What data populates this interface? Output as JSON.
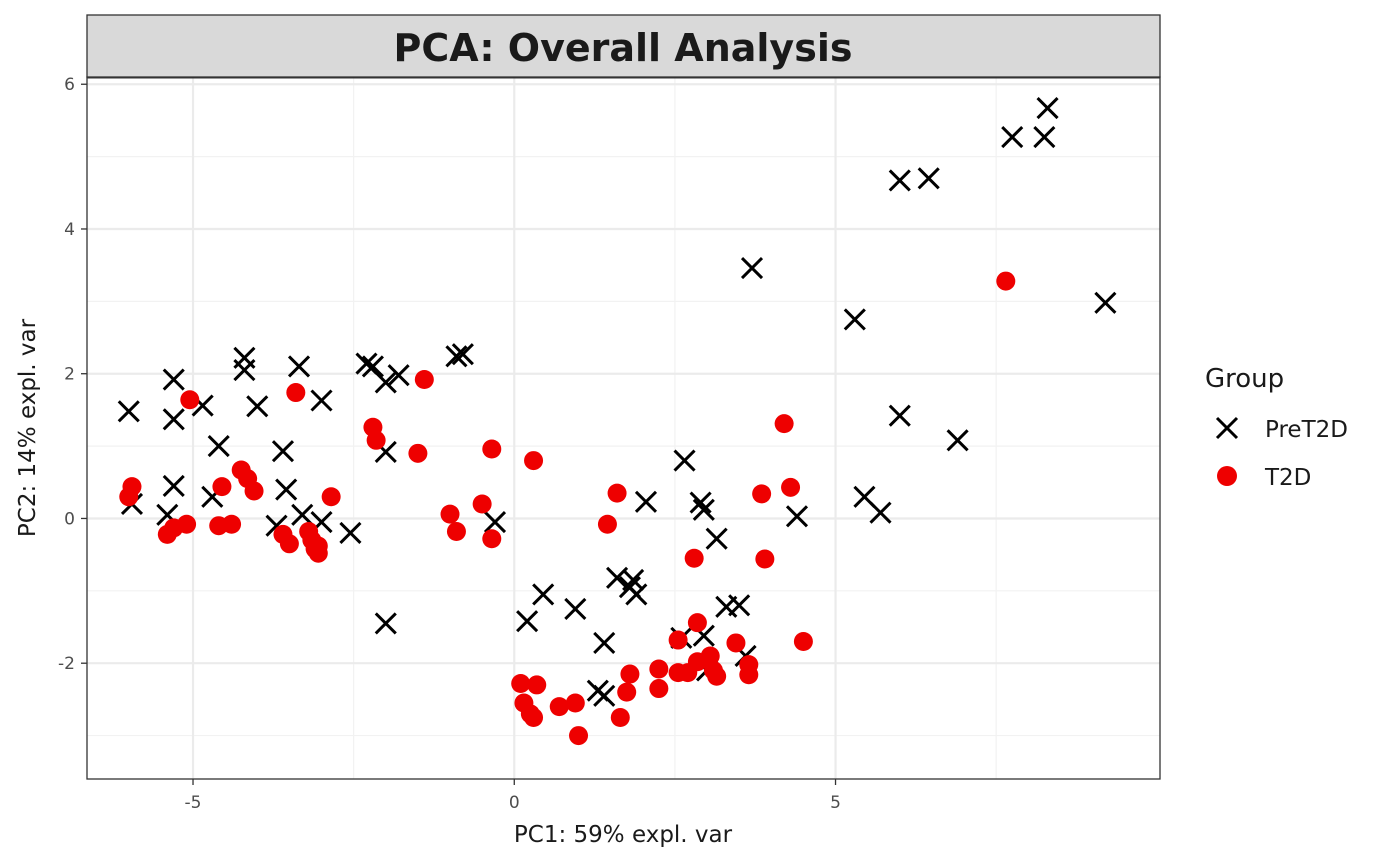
{
  "chart_data": {
    "type": "scatter",
    "title": "PCA: Overall Analysis",
    "xlabel": "PC1: 59% expl. var",
    "ylabel": "PC2: 14% expl. var",
    "xlim": [
      -6.65,
      10.05
    ],
    "ylim": [
      -3.6,
      6.1
    ],
    "x_ticks": [
      -5,
      0,
      5
    ],
    "y_ticks": [
      -2,
      0,
      2,
      4,
      6
    ],
    "x_minor_ticks": [
      -7.5,
      -2.5,
      2.5,
      7.5
    ],
    "y_minor_ticks": [
      -3,
      -1,
      1,
      3,
      5
    ],
    "grid": true,
    "legend_title": "Group",
    "legend_position": "right",
    "series": [
      {
        "name": "PreT2D",
        "marker": "x",
        "color": "#000000",
        "points": [
          [
            -6.0,
            1.48
          ],
          [
            -5.95,
            0.2
          ],
          [
            -5.3,
            1.92
          ],
          [
            -5.3,
            1.37
          ],
          [
            -5.3,
            0.45
          ],
          [
            -5.4,
            0.05
          ],
          [
            -4.85,
            1.56
          ],
          [
            -4.7,
            0.3
          ],
          [
            -4.6,
            1.0
          ],
          [
            -4.2,
            2.22
          ],
          [
            -4.2,
            2.05
          ],
          [
            -4.0,
            1.55
          ],
          [
            -3.6,
            0.93
          ],
          [
            -3.55,
            0.4
          ],
          [
            -3.7,
            -0.1
          ],
          [
            -3.35,
            2.1
          ],
          [
            -3.3,
            0.05
          ],
          [
            -3.0,
            1.63
          ],
          [
            -3.0,
            -0.05
          ],
          [
            -2.55,
            -0.2
          ],
          [
            -2.3,
            2.14
          ],
          [
            -2.2,
            2.1
          ],
          [
            -2.0,
            1.88
          ],
          [
            -1.8,
            1.98
          ],
          [
            -2.0,
            0.92
          ],
          [
            -2.0,
            -1.45
          ],
          [
            -0.9,
            2.24
          ],
          [
            -0.8,
            2.27
          ],
          [
            -0.3,
            -0.05
          ],
          [
            0.2,
            -1.42
          ],
          [
            0.45,
            -1.05
          ],
          [
            0.95,
            -1.25
          ],
          [
            1.4,
            -1.72
          ],
          [
            1.3,
            -2.38
          ],
          [
            1.4,
            -2.45
          ],
          [
            1.6,
            -0.82
          ],
          [
            1.8,
            -0.95
          ],
          [
            1.85,
            -0.85
          ],
          [
            1.9,
            -1.05
          ],
          [
            2.05,
            0.23
          ],
          [
            2.6,
            -1.65
          ],
          [
            2.65,
            0.8
          ],
          [
            2.9,
            0.22
          ],
          [
            2.95,
            0.12
          ],
          [
            3.15,
            -0.28
          ],
          [
            2.95,
            -1.62
          ],
          [
            3.0,
            -2.1
          ],
          [
            3.3,
            -1.22
          ],
          [
            3.5,
            -1.2
          ],
          [
            3.6,
            -1.9
          ],
          [
            3.7,
            3.46
          ],
          [
            4.4,
            0.03
          ],
          [
            5.3,
            2.75
          ],
          [
            5.45,
            0.3
          ],
          [
            5.7,
            0.08
          ],
          [
            6.0,
            1.42
          ],
          [
            6.0,
            4.67
          ],
          [
            6.45,
            4.7
          ],
          [
            6.9,
            1.08
          ],
          [
            7.75,
            5.27
          ],
          [
            8.25,
            5.27
          ],
          [
            8.3,
            5.67
          ],
          [
            9.2,
            2.98
          ]
        ]
      },
      {
        "name": "T2D",
        "marker": "circle",
        "color": "#ee0000",
        "points": [
          [
            -6.0,
            0.3
          ],
          [
            -5.95,
            0.44
          ],
          [
            -5.4,
            -0.22
          ],
          [
            -5.3,
            -0.13
          ],
          [
            -5.1,
            -0.08
          ],
          [
            -5.05,
            1.64
          ],
          [
            -4.6,
            -0.1
          ],
          [
            -4.55,
            0.44
          ],
          [
            -4.4,
            -0.08
          ],
          [
            -4.25,
            0.67
          ],
          [
            -4.15,
            0.55
          ],
          [
            -4.05,
            0.38
          ],
          [
            -3.6,
            -0.22
          ],
          [
            -3.5,
            -0.35
          ],
          [
            -3.4,
            1.74
          ],
          [
            -3.2,
            -0.18
          ],
          [
            -3.15,
            -0.3
          ],
          [
            -3.1,
            -0.42
          ],
          [
            -3.05,
            -0.38
          ],
          [
            -3.05,
            -0.48
          ],
          [
            -2.85,
            0.3
          ],
          [
            -2.2,
            1.26
          ],
          [
            -2.15,
            1.08
          ],
          [
            -1.5,
            0.9
          ],
          [
            -1.4,
            1.92
          ],
          [
            -1.0,
            0.06
          ],
          [
            -0.9,
            -0.18
          ],
          [
            -0.5,
            0.2
          ],
          [
            -0.35,
            0.96
          ],
          [
            -0.35,
            -0.28
          ],
          [
            0.1,
            -2.28
          ],
          [
            0.15,
            -2.55
          ],
          [
            0.25,
            -2.7
          ],
          [
            0.3,
            -2.75
          ],
          [
            0.35,
            -2.3
          ],
          [
            0.3,
            0.8
          ],
          [
            0.7,
            -2.6
          ],
          [
            0.95,
            -2.55
          ],
          [
            1.0,
            -3.0
          ],
          [
            1.45,
            -0.08
          ],
          [
            1.6,
            0.35
          ],
          [
            1.65,
            -2.75
          ],
          [
            1.75,
            -2.4
          ],
          [
            1.8,
            -2.15
          ],
          [
            2.25,
            -2.08
          ],
          [
            2.25,
            -2.35
          ],
          [
            2.55,
            -1.68
          ],
          [
            2.55,
            -2.13
          ],
          [
            2.7,
            -2.13
          ],
          [
            2.8,
            -0.55
          ],
          [
            2.85,
            -1.44
          ],
          [
            2.85,
            -1.98
          ],
          [
            3.05,
            -1.9
          ],
          [
            3.1,
            -2.1
          ],
          [
            3.15,
            -2.18
          ],
          [
            3.45,
            -1.72
          ],
          [
            3.65,
            -2.02
          ],
          [
            3.65,
            -2.16
          ],
          [
            3.85,
            0.34
          ],
          [
            3.9,
            -0.56
          ],
          [
            4.2,
            1.31
          ],
          [
            4.3,
            0.43
          ],
          [
            4.5,
            -1.7
          ],
          [
            7.65,
            3.28
          ]
        ]
      }
    ]
  }
}
